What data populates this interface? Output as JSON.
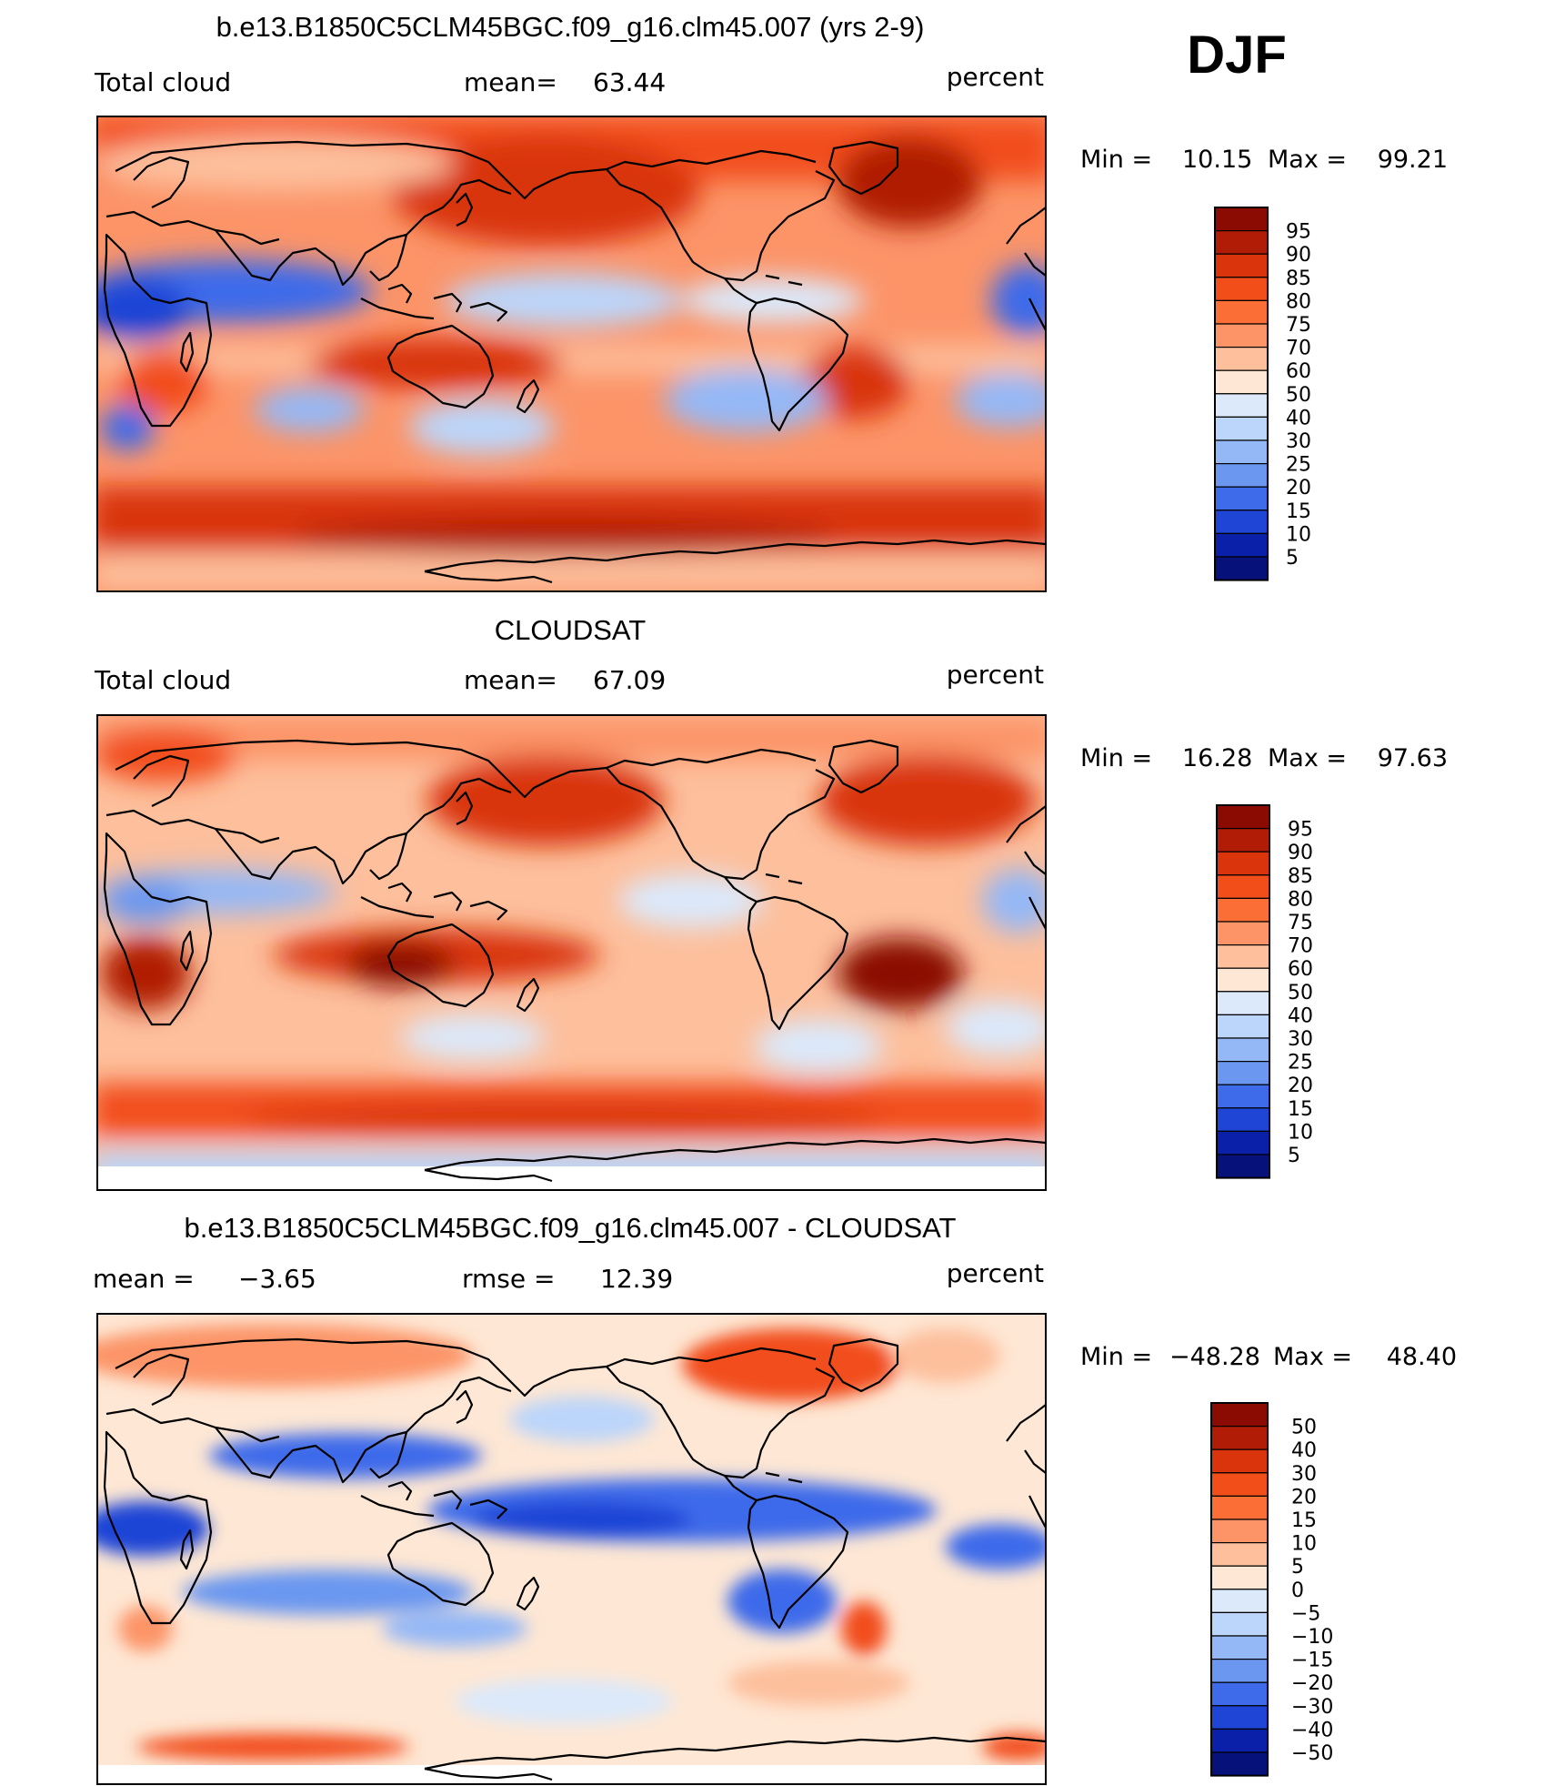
{
  "season_label": "DJF",
  "panels": [
    {
      "id": "model",
      "title": "b.e13.B1850C5CLM45BGC.f09_g16.clm45.007 (yrs 2-9)",
      "left_label": "Total cloud",
      "mean_label": "mean=",
      "mean_value": "63.44",
      "units": "percent",
      "min_label": "Min =",
      "min_value": "10.15",
      "max_label": "Max =",
      "max_value": "99.21",
      "colorbar": {
        "levels": [
          "95",
          "90",
          "85",
          "80",
          "75",
          "70",
          "60",
          "50",
          "40",
          "30",
          "25",
          "20",
          "15",
          "10",
          "5"
        ],
        "colors": [
          "#8b0a02",
          "#b01c05",
          "#d9340b",
          "#f24e1a",
          "#fb6e36",
          "#fc9468",
          "#fdbf9c",
          "#fee7d4",
          "#dbe9fb",
          "#bcd5fa",
          "#94b8f6",
          "#6b97f0",
          "#3d6bea",
          "#1f45d6",
          "#0b20a8",
          "#06117a"
        ]
      }
    },
    {
      "id": "obs",
      "title": "CLOUDSAT",
      "left_label": "Total cloud",
      "mean_label": "mean=",
      "mean_value": "67.09",
      "units": "percent",
      "min_label": "Min =",
      "min_value": "16.28",
      "max_label": "Max =",
      "max_value": "97.63",
      "colorbar": {
        "levels": [
          "95",
          "90",
          "85",
          "80",
          "75",
          "70",
          "60",
          "50",
          "40",
          "30",
          "25",
          "20",
          "15",
          "10",
          "5"
        ],
        "colors": [
          "#8b0a02",
          "#b01c05",
          "#d9340b",
          "#f24e1a",
          "#fb6e36",
          "#fc9468",
          "#fdbf9c",
          "#fee7d4",
          "#dbe9fb",
          "#bcd5fa",
          "#94b8f6",
          "#6b97f0",
          "#3d6bea",
          "#1f45d6",
          "#0b20a8",
          "#06117a"
        ]
      }
    },
    {
      "id": "diff",
      "title": "b.e13.B1850C5CLM45BGC.f09_g16.clm45.007 - CLOUDSAT",
      "left_label": "mean =",
      "left_value": "−3.65",
      "mean_label": "rmse =",
      "mean_value": "12.39",
      "units": "percent",
      "min_label": "Min =",
      "min_value": "−48.28",
      "max_label": "Max =",
      "max_value": "48.40",
      "colorbar": {
        "levels": [
          "50",
          "40",
          "30",
          "20",
          "15",
          "10",
          "5",
          "0",
          "−5",
          "−10",
          "−15",
          "−20",
          "−30",
          "−40",
          "−50"
        ],
        "colors": [
          "#8b0a02",
          "#b01c05",
          "#d9340b",
          "#f24e1a",
          "#fb6e36",
          "#fc9468",
          "#fdbf9c",
          "#fee7d4",
          "#dbe9fb",
          "#bcd5fa",
          "#94b8f6",
          "#6b97f0",
          "#3d6bea",
          "#1f45d6",
          "#0b20a8",
          "#06117a"
        ]
      }
    }
  ]
}
